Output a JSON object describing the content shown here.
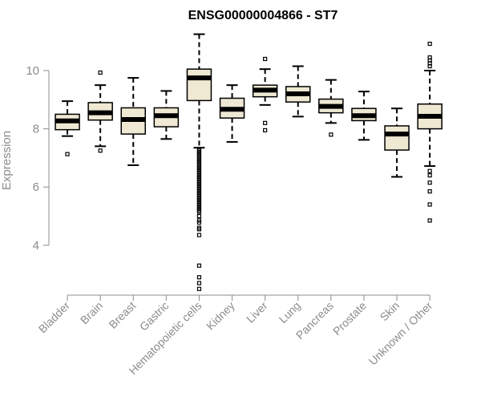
{
  "chart_data": {
    "type": "boxplot",
    "title": "ENSG00000004866 - ST7",
    "ylabel": "Expression",
    "xlabel": "",
    "ylim": [
      2.3,
      11.6
    ],
    "yticks": [
      4,
      6,
      8,
      10
    ],
    "grid": false,
    "legend": "none",
    "box_color": "#efe9d3",
    "categories": [
      "Bladder",
      "Brain",
      "Breast",
      "Gastric",
      "Hematopoietic cells",
      "Kidney",
      "Liver",
      "Lung",
      "Pancreas",
      "Prostate",
      "Skin",
      "Unknown / Other"
    ],
    "boxes": [
      {
        "name": "Bladder",
        "whisker_low": 7.75,
        "q1": 7.97,
        "median": 8.27,
        "q3": 8.5,
        "whisker_high": 8.95,
        "outliers": [
          7.13
        ]
      },
      {
        "name": "Brain",
        "whisker_low": 7.4,
        "q1": 8.3,
        "median": 8.55,
        "q3": 8.9,
        "whisker_high": 9.5,
        "outliers": [
          9.93,
          7.25
        ]
      },
      {
        "name": "Breast",
        "whisker_low": 6.75,
        "q1": 7.82,
        "median": 8.32,
        "q3": 8.72,
        "whisker_high": 9.75,
        "outliers": []
      },
      {
        "name": "Gastric",
        "whisker_low": 7.65,
        "q1": 8.07,
        "median": 8.45,
        "q3": 8.72,
        "whisker_high": 9.3,
        "outliers": []
      },
      {
        "name": "Hematopoietic cells",
        "whisker_low": 7.35,
        "q1": 8.97,
        "median": 9.75,
        "q3": 10.05,
        "whisker_high": 11.25,
        "outliers": [
          7.3,
          7.25,
          7.2,
          7.15,
          7.1,
          7.05,
          7.0,
          6.95,
          6.9,
          6.85,
          6.8,
          6.75,
          6.7,
          6.65,
          6.6,
          6.55,
          6.5,
          6.45,
          6.4,
          6.35,
          6.3,
          6.25,
          6.2,
          6.15,
          6.1,
          6.05,
          6.0,
          5.95,
          5.9,
          5.85,
          5.8,
          5.75,
          5.7,
          5.65,
          5.6,
          5.55,
          5.5,
          5.45,
          5.4,
          5.35,
          5.3,
          5.25,
          5.2,
          5.15,
          5.0,
          4.85,
          4.78,
          4.6,
          4.55,
          4.35,
          3.3,
          2.9,
          2.7,
          2.5
        ]
      },
      {
        "name": "Kidney",
        "whisker_low": 7.55,
        "q1": 8.37,
        "median": 8.67,
        "q3": 9.05,
        "whisker_high": 9.5,
        "outliers": []
      },
      {
        "name": "Liver",
        "whisker_low": 8.82,
        "q1": 9.1,
        "median": 9.33,
        "q3": 9.5,
        "whisker_high": 10.05,
        "outliers": [
          10.4,
          8.2,
          7.95
        ]
      },
      {
        "name": "Lung",
        "whisker_low": 8.42,
        "q1": 8.92,
        "median": 9.2,
        "q3": 9.45,
        "whisker_high": 10.15,
        "outliers": []
      },
      {
        "name": "Pancreas",
        "whisker_low": 8.2,
        "q1": 8.55,
        "median": 8.77,
        "q3": 9.02,
        "whisker_high": 9.68,
        "outliers": [
          7.8
        ]
      },
      {
        "name": "Prostate",
        "whisker_low": 7.62,
        "q1": 8.28,
        "median": 8.45,
        "q3": 8.7,
        "whisker_high": 9.28,
        "outliers": []
      },
      {
        "name": "Skin",
        "whisker_low": 6.35,
        "q1": 7.27,
        "median": 7.82,
        "q3": 8.1,
        "whisker_high": 8.7,
        "outliers": []
      },
      {
        "name": "Unknown / Other",
        "whisker_low": 6.72,
        "q1": 8.0,
        "median": 8.43,
        "q3": 8.85,
        "whisker_high": 10.0,
        "outliers": [
          10.92,
          10.45,
          10.35,
          10.25,
          10.15,
          6.55,
          6.4,
          6.15,
          5.85,
          5.4,
          4.85
        ]
      }
    ]
  }
}
